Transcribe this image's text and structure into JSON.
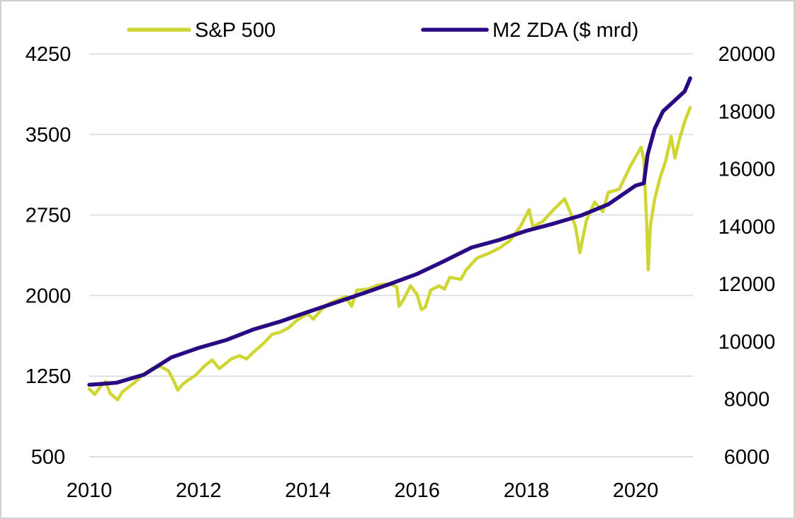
{
  "chart_data": {
    "type": "line",
    "title": "",
    "xlabel": "",
    "ylabel_left": "",
    "ylabel_right": "",
    "legend_position": "top",
    "grid": "horizontal",
    "x_ticks": [
      "2010",
      "2012",
      "2014",
      "2016",
      "2018",
      "2020"
    ],
    "x_range": [
      2010.0,
      2021.05
    ],
    "y_left": {
      "range": [
        500,
        4250
      ],
      "ticks": [
        "500",
        "1250",
        "2000",
        "2750",
        "3500",
        "4250"
      ]
    },
    "y_right": {
      "range": [
        6000,
        20000
      ],
      "ticks": [
        "6000",
        "8000",
        "10000",
        "12000",
        "14000",
        "16000",
        "18000",
        "20000"
      ]
    },
    "series": [
      {
        "name": "S&P 500",
        "axis": "left",
        "color": "#cfd634",
        "points": [
          [
            2010.0,
            1130
          ],
          [
            2010.1,
            1080
          ],
          [
            2010.2,
            1150
          ],
          [
            2010.3,
            1200
          ],
          [
            2010.38,
            1090
          ],
          [
            2010.45,
            1060
          ],
          [
            2010.52,
            1030
          ],
          [
            2010.6,
            1100
          ],
          [
            2010.7,
            1140
          ],
          [
            2010.85,
            1200
          ],
          [
            2011.0,
            1270
          ],
          [
            2011.15,
            1320
          ],
          [
            2011.3,
            1340
          ],
          [
            2011.45,
            1300
          ],
          [
            2011.55,
            1200
          ],
          [
            2011.62,
            1120
          ],
          [
            2011.7,
            1170
          ],
          [
            2011.8,
            1210
          ],
          [
            2011.95,
            1260
          ],
          [
            2012.1,
            1340
          ],
          [
            2012.25,
            1400
          ],
          [
            2012.38,
            1320
          ],
          [
            2012.48,
            1360
          ],
          [
            2012.6,
            1410
          ],
          [
            2012.75,
            1440
          ],
          [
            2012.88,
            1410
          ],
          [
            2013.0,
            1470
          ],
          [
            2013.2,
            1560
          ],
          [
            2013.35,
            1640
          ],
          [
            2013.5,
            1660
          ],
          [
            2013.65,
            1700
          ],
          [
            2013.8,
            1770
          ],
          [
            2014.0,
            1830
          ],
          [
            2014.1,
            1780
          ],
          [
            2014.25,
            1870
          ],
          [
            2014.4,
            1930
          ],
          [
            2014.55,
            1960
          ],
          [
            2014.7,
            1990
          ],
          [
            2014.8,
            1900
          ],
          [
            2014.9,
            2050
          ],
          [
            2015.1,
            2060
          ],
          [
            2015.3,
            2100
          ],
          [
            2015.5,
            2110
          ],
          [
            2015.63,
            2080
          ],
          [
            2015.67,
            1900
          ],
          [
            2015.75,
            1960
          ],
          [
            2015.88,
            2090
          ],
          [
            2016.0,
            2010
          ],
          [
            2016.08,
            1870
          ],
          [
            2016.15,
            1890
          ],
          [
            2016.25,
            2050
          ],
          [
            2016.4,
            2090
          ],
          [
            2016.5,
            2060
          ],
          [
            2016.6,
            2170
          ],
          [
            2016.8,
            2150
          ],
          [
            2016.9,
            2240
          ],
          [
            2017.1,
            2350
          ],
          [
            2017.3,
            2390
          ],
          [
            2017.5,
            2440
          ],
          [
            2017.7,
            2510
          ],
          [
            2017.9,
            2650
          ],
          [
            2018.05,
            2800
          ],
          [
            2018.12,
            2640
          ],
          [
            2018.3,
            2690
          ],
          [
            2018.5,
            2800
          ],
          [
            2018.7,
            2900
          ],
          [
            2018.8,
            2780
          ],
          [
            2018.9,
            2640
          ],
          [
            2018.98,
            2400
          ],
          [
            2019.1,
            2700
          ],
          [
            2019.25,
            2870
          ],
          [
            2019.4,
            2780
          ],
          [
            2019.5,
            2960
          ],
          [
            2019.7,
            2990
          ],
          [
            2019.9,
            3200
          ],
          [
            2020.1,
            3380
          ],
          [
            2020.15,
            3270
          ],
          [
            2020.2,
            2700
          ],
          [
            2020.23,
            2240
          ],
          [
            2020.27,
            2650
          ],
          [
            2020.35,
            2900
          ],
          [
            2020.45,
            3100
          ],
          [
            2020.55,
            3250
          ],
          [
            2020.65,
            3480
          ],
          [
            2020.72,
            3280
          ],
          [
            2020.8,
            3450
          ],
          [
            2020.9,
            3620
          ],
          [
            2021.0,
            3750
          ]
        ]
      },
      {
        "name": "M2 ZDA ($ mrd)",
        "axis": "right",
        "color": "#2a0a82",
        "points": [
          [
            2010.0,
            8500
          ],
          [
            2010.5,
            8570
          ],
          [
            2011.0,
            8850
          ],
          [
            2011.5,
            9450
          ],
          [
            2012.0,
            9780
          ],
          [
            2012.5,
            10050
          ],
          [
            2013.0,
            10420
          ],
          [
            2013.5,
            10700
          ],
          [
            2014.0,
            11030
          ],
          [
            2014.5,
            11350
          ],
          [
            2015.0,
            11670
          ],
          [
            2015.5,
            12000
          ],
          [
            2016.0,
            12350
          ],
          [
            2016.5,
            12800
          ],
          [
            2017.0,
            13270
          ],
          [
            2017.5,
            13530
          ],
          [
            2018.0,
            13850
          ],
          [
            2018.5,
            14100
          ],
          [
            2019.0,
            14380
          ],
          [
            2019.5,
            14770
          ],
          [
            2020.0,
            15420
          ],
          [
            2020.15,
            15500
          ],
          [
            2020.22,
            16500
          ],
          [
            2020.35,
            17400
          ],
          [
            2020.5,
            18000
          ],
          [
            2020.7,
            18350
          ],
          [
            2020.9,
            18700
          ],
          [
            2021.0,
            19150
          ]
        ]
      }
    ]
  }
}
